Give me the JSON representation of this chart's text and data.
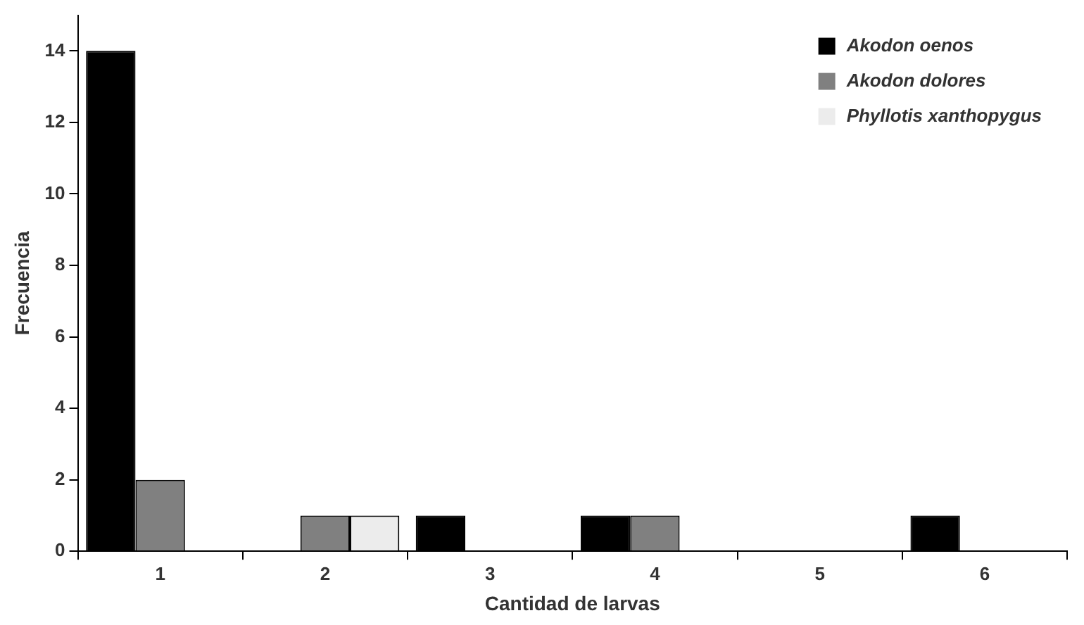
{
  "chart_data": {
    "type": "bar",
    "xlabel": "Cantidad de larvas",
    "ylabel": "Frecuencia",
    "categories": [
      "1",
      "2",
      "3",
      "4",
      "5",
      "6"
    ],
    "series": [
      {
        "name": "Akodon oenos",
        "color": "#000000",
        "values": [
          14,
          0,
          1,
          1,
          0,
          1
        ]
      },
      {
        "name": "Akodon dolores",
        "color": "#808080",
        "values": [
          2,
          1,
          0,
          1,
          0,
          0
        ]
      },
      {
        "name": "Phyllotis xanthopygus",
        "color": "#ececec",
        "values": [
          0,
          1,
          0,
          0,
          0,
          0
        ]
      }
    ],
    "ylim": [
      0,
      15
    ],
    "yticks": [
      0,
      2,
      4,
      6,
      8,
      10,
      12,
      14
    ],
    "grid": false,
    "legend": "top right"
  }
}
